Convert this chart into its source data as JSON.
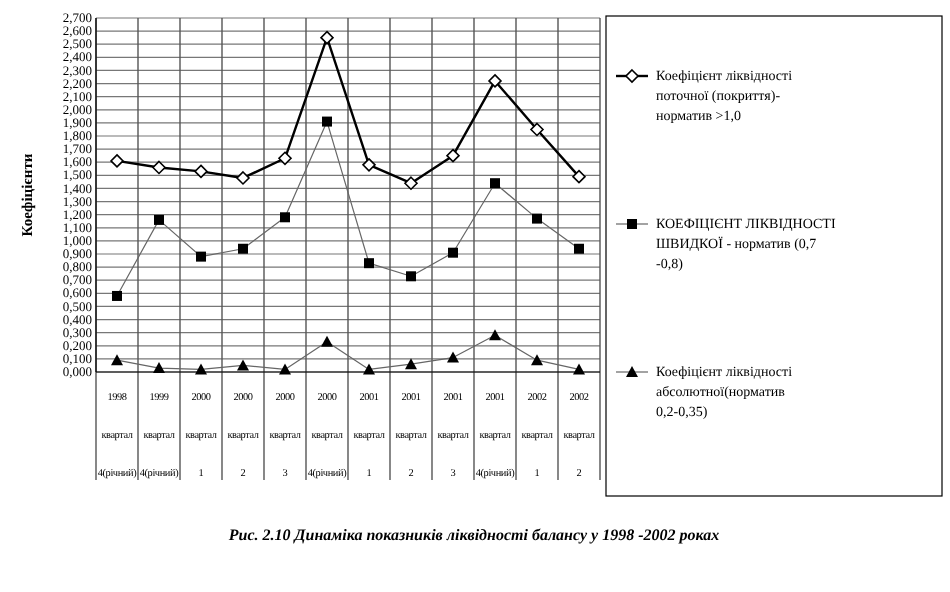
{
  "chart_data": {
    "type": "line",
    "title": "Рис. 2.10  Динаміка показників ліквідності балансу у 1998 -2002 роках",
    "ylabel": "Коефіцієнти",
    "categories": [
      "1998\nквартал\n4(річний)",
      "1999\nквартал\n4(річний)",
      "2000\nквартал\n1",
      "2000\nквартал\n2",
      "2000\nквартал\n3",
      "2000\nквартал\n4(річний)",
      "2001\nквартал\n1",
      "2001\nквартал\n2",
      "2001\nквартал\n3",
      "2001\nквартал\n4(річний)",
      "2002\nквартал\n1",
      "2002\nквартал\n2"
    ],
    "series": [
      {
        "name": "Коефіцієнт ліквідності поточної (покриття)- норматив >1,0",
        "color": "#000000",
        "marker": "diamond",
        "values": [
          1.61,
          1.56,
          1.53,
          1.48,
          1.63,
          2.55,
          1.58,
          1.44,
          1.65,
          2.22,
          1.85,
          1.49
        ]
      },
      {
        "name": "КОЕФІЦІЄНТ ЛІКВІДНОСТІ ШВИДКОЇ - норматив (0,7 -0,8)",
        "color": "#000000",
        "marker": "square",
        "values": [
          0.58,
          1.16,
          0.88,
          0.94,
          1.18,
          1.91,
          0.83,
          0.73,
          0.91,
          1.44,
          1.17,
          0.94
        ]
      },
      {
        "name": "Коефіцієнт ліквідності абсолютної(норматив 0,2-0,35)",
        "color": "#000000",
        "marker": "triangle",
        "values": [
          0.09,
          0.03,
          0.02,
          0.05,
          0.02,
          0.23,
          0.02,
          0.06,
          0.11,
          0.28,
          0.09,
          0.02
        ]
      }
    ],
    "ylim": [
      0,
      2.7
    ],
    "yticks": [
      {
        "value": 0,
        "label": "0,000"
      },
      {
        "value": 0.1,
        "label": "0,100"
      },
      {
        "value": 0.2,
        "label": "0,200"
      },
      {
        "value": 0.3,
        "label": "0,300"
      },
      {
        "value": 0.4,
        "label": "0,400"
      },
      {
        "value": 0.5,
        "label": "0,500"
      },
      {
        "value": 0.6,
        "label": "0,600"
      },
      {
        "value": 0.7,
        "label": "0,700"
      },
      {
        "value": 0.8,
        "label": "0,800"
      },
      {
        "value": 0.9,
        "label": "0,900"
      },
      {
        "value": 1.0,
        "label": "1,000"
      },
      {
        "value": 1.1,
        "label": "1,100"
      },
      {
        "value": 1.2,
        "label": "1,200"
      },
      {
        "value": 1.3,
        "label": "1,300"
      },
      {
        "value": 1.4,
        "label": "1,400"
      },
      {
        "value": 1.5,
        "label": "1,500"
      },
      {
        "value": 1.6,
        "label": "1,600"
      },
      {
        "value": 1.7,
        "label": "1,700"
      },
      {
        "value": 1.8,
        "label": "1,800"
      },
      {
        "value": 1.9,
        "label": "1,900"
      },
      {
        "value": 2.0,
        "label": "2,000"
      },
      {
        "value": 2.1,
        "label": "2,100"
      },
      {
        "value": 2.2,
        "label": "2,200"
      },
      {
        "value": 2.3,
        "label": "2,300"
      },
      {
        "value": 2.4,
        "label": "2,400"
      },
      {
        "value": 2.5,
        "label": "2,500"
      },
      {
        "value": 2.6,
        "label": "2,600"
      },
      {
        "value": 2.7,
        "label": "2,700"
      }
    ],
    "grid": true,
    "legend": "right",
    "line_style": "solid"
  }
}
